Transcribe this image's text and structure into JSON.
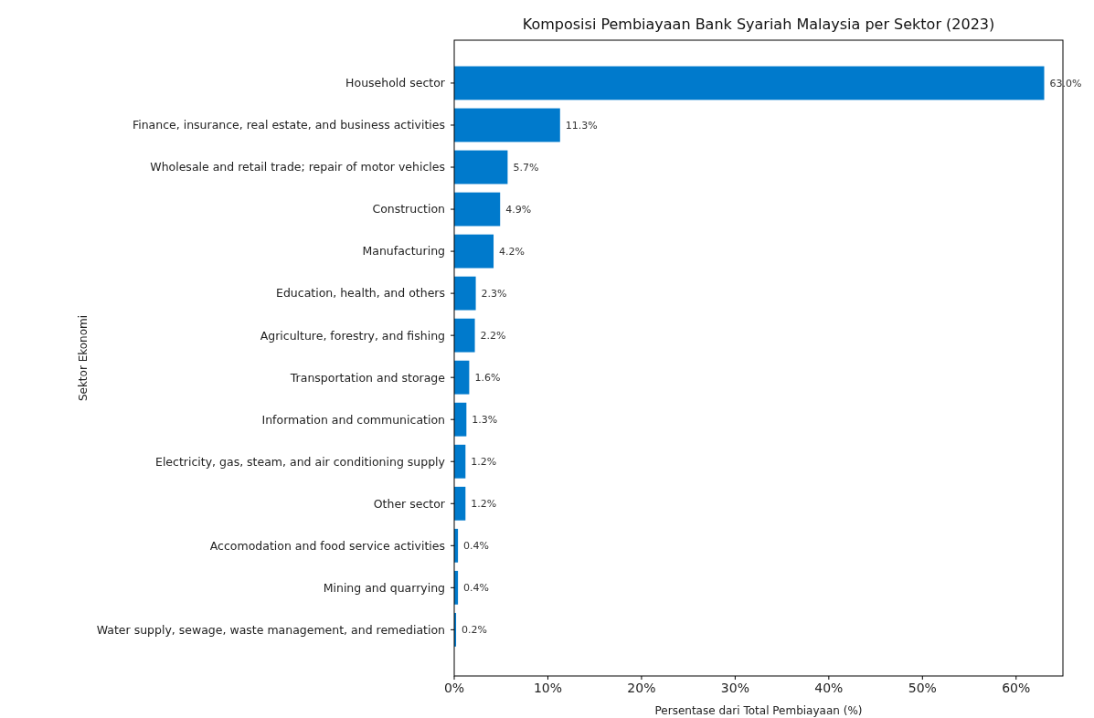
{
  "chart_data": {
    "type": "bar",
    "orientation": "horizontal",
    "title": "Komposisi Pembiayaan Bank Syariah Malaysia per Sektor (2023)",
    "xlabel": "Persentase dari Total Pembiayaan (%)",
    "ylabel": "Sektor Ekonomi",
    "categories": [
      "Household sector",
      "Finance, insurance, real estate, and business activities",
      "Wholesale and retail trade; repair of motor vehicles",
      "Construction",
      "Manufacturing",
      "Education, health, and others",
      "Agriculture, forestry, and fishing",
      "Transportation and storage",
      "Information and communication",
      "Electricity, gas, steam, and air conditioning supply",
      "Other sector",
      "Accomodation and food service activities",
      "Mining and quarrying",
      "Water supply, sewage, waste management, and remediation"
    ],
    "values": [
      63.0,
      11.3,
      5.7,
      4.9,
      4.2,
      2.3,
      2.2,
      1.6,
      1.3,
      1.2,
      1.2,
      0.4,
      0.4,
      0.2
    ],
    "value_labels": [
      "63.0%",
      "11.3%",
      "5.7%",
      "4.9%",
      "4.2%",
      "2.3%",
      "2.2%",
      "1.6%",
      "1.3%",
      "1.2%",
      "1.2%",
      "0.4%",
      "0.4%",
      "0.2%"
    ],
    "color": "#007acc",
    "xlim": [
      0,
      65
    ],
    "xticks": [
      {
        "value": 0,
        "label": "0%"
      },
      {
        "value": 10,
        "label": "10%"
      },
      {
        "value": 20,
        "label": "20%"
      },
      {
        "value": 30,
        "label": "30%"
      },
      {
        "value": 40,
        "label": "40%"
      },
      {
        "value": 50,
        "label": "50%"
      },
      {
        "value": 60,
        "label": "60%"
      }
    ],
    "grid": false
  }
}
